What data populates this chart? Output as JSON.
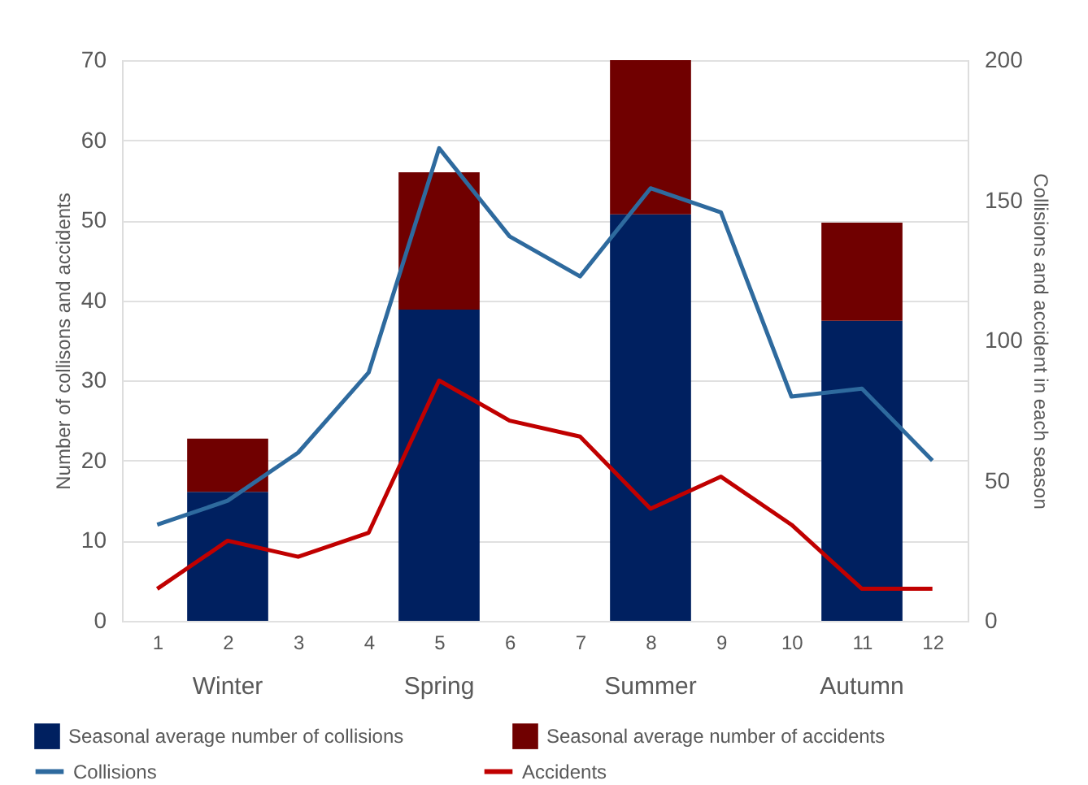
{
  "chart_data": {
    "type": "bar",
    "stacked": true,
    "x": [
      1,
      2,
      3,
      4,
      5,
      6,
      7,
      8,
      9,
      10,
      11,
      12
    ],
    "series": [
      {
        "name": "Seasonal average number of collisions",
        "axis": "y2",
        "color": "#002060",
        "x": [
          2,
          5,
          8,
          11
        ],
        "values": [
          46,
          111,
          145,
          107
        ]
      },
      {
        "name": "Seasonal average number of accidents",
        "axis": "y2",
        "color": "#700000",
        "x": [
          2,
          5,
          8,
          11
        ],
        "values": [
          19,
          49,
          55,
          35
        ]
      },
      {
        "name": "Collisions",
        "type": "line",
        "color": "#2e6a9e",
        "values": [
          12,
          15,
          21,
          31,
          59,
          48,
          43,
          54,
          51,
          28,
          29,
          20
        ]
      },
      {
        "name": "Accidents",
        "type": "line",
        "color": "#c00000",
        "values": [
          4,
          10,
          8,
          11,
          30,
          25,
          23,
          14,
          18,
          12,
          4,
          4
        ]
      }
    ],
    "xlim": [
      0.5,
      12.5
    ],
    "xticks": [
      1,
      2,
      3,
      4,
      5,
      6,
      7,
      8,
      9,
      10,
      11,
      12
    ],
    "ylim": [
      0,
      70
    ],
    "yticks": [
      0,
      10,
      20,
      30,
      40,
      50,
      60,
      70
    ],
    "y2lim": [
      0,
      200
    ],
    "y2ticks": [
      0,
      50,
      100,
      150,
      200
    ],
    "ylabel": "Number of collisons and accidents",
    "y2label": "Collisions and accident in each season",
    "annotations": [
      "Winter",
      "Spring",
      "Summer",
      "Autumn"
    ],
    "grid": "y",
    "legend": "bottom"
  }
}
